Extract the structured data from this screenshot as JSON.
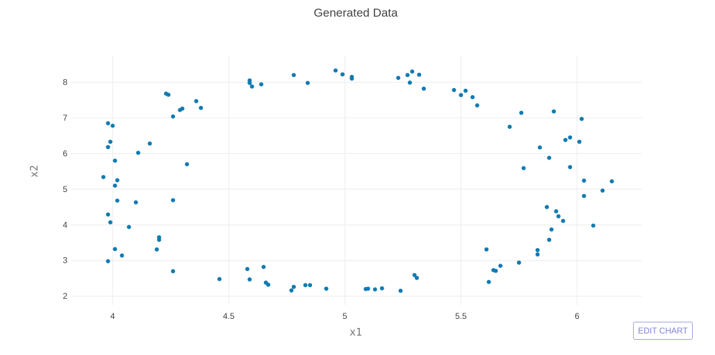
{
  "chart_data": {
    "type": "scatter",
    "title": "Generated Data",
    "xlabel": "x1",
    "ylabel": "x2",
    "xlim": [
      3.82,
      6.28
    ],
    "ylim": [
      1.75,
      8.75
    ],
    "x_ticks": [
      4,
      4.5,
      5,
      5.5,
      6
    ],
    "y_ticks": [
      2,
      3,
      4,
      5,
      6,
      7,
      8
    ],
    "x_tick_labels": [
      "4",
      "4.5",
      "5",
      "5.5",
      "6"
    ],
    "y_tick_labels": [
      "2",
      "3",
      "4",
      "5",
      "6",
      "7",
      "8"
    ],
    "grid": true,
    "marker_color": "#0f7bb2",
    "points": [
      {
        "x": 3.98,
        "y": 6.85
      },
      {
        "x": 4.0,
        "y": 6.78
      },
      {
        "x": 3.99,
        "y": 6.33
      },
      {
        "x": 3.98,
        "y": 6.18
      },
      {
        "x": 4.01,
        "y": 5.8
      },
      {
        "x": 3.96,
        "y": 5.34
      },
      {
        "x": 4.02,
        "y": 5.25
      },
      {
        "x": 4.01,
        "y": 5.1
      },
      {
        "x": 4.02,
        "y": 4.68
      },
      {
        "x": 3.98,
        "y": 4.29
      },
      {
        "x": 3.99,
        "y": 4.07
      },
      {
        "x": 4.01,
        "y": 3.32
      },
      {
        "x": 4.04,
        "y": 3.14
      },
      {
        "x": 3.98,
        "y": 2.98
      },
      {
        "x": 4.11,
        "y": 6.02
      },
      {
        "x": 4.16,
        "y": 6.28
      },
      {
        "x": 4.1,
        "y": 4.63
      },
      {
        "x": 4.07,
        "y": 3.94
      },
      {
        "x": 4.2,
        "y": 3.65
      },
      {
        "x": 4.2,
        "y": 3.58
      },
      {
        "x": 4.19,
        "y": 3.31
      },
      {
        "x": 4.23,
        "y": 7.68
      },
      {
        "x": 4.24,
        "y": 7.65
      },
      {
        "x": 4.26,
        "y": 7.04
      },
      {
        "x": 4.29,
        "y": 7.22
      },
      {
        "x": 4.3,
        "y": 7.26
      },
      {
        "x": 4.26,
        "y": 4.69
      },
      {
        "x": 4.26,
        "y": 2.7
      },
      {
        "x": 4.32,
        "y": 5.7
      },
      {
        "x": 4.36,
        "y": 7.47
      },
      {
        "x": 4.38,
        "y": 7.28
      },
      {
        "x": 4.46,
        "y": 2.48
      },
      {
        "x": 4.59,
        "y": 8.05
      },
      {
        "x": 4.59,
        "y": 7.98
      },
      {
        "x": 4.6,
        "y": 7.88
      },
      {
        "x": 4.64,
        "y": 7.94
      },
      {
        "x": 4.58,
        "y": 2.76
      },
      {
        "x": 4.59,
        "y": 2.47
      },
      {
        "x": 4.65,
        "y": 2.82
      },
      {
        "x": 4.66,
        "y": 2.38
      },
      {
        "x": 4.67,
        "y": 2.32
      },
      {
        "x": 4.78,
        "y": 8.2
      },
      {
        "x": 4.84,
        "y": 7.98
      },
      {
        "x": 4.77,
        "y": 2.16
      },
      {
        "x": 4.78,
        "y": 2.26
      },
      {
        "x": 4.83,
        "y": 2.31
      },
      {
        "x": 4.85,
        "y": 2.31
      },
      {
        "x": 4.92,
        "y": 2.21
      },
      {
        "x": 4.96,
        "y": 8.33
      },
      {
        "x": 4.99,
        "y": 8.22
      },
      {
        "x": 5.03,
        "y": 8.15
      },
      {
        "x": 5.03,
        "y": 8.1
      },
      {
        "x": 5.09,
        "y": 2.2
      },
      {
        "x": 5.1,
        "y": 2.21
      },
      {
        "x": 5.13,
        "y": 2.19
      },
      {
        "x": 5.16,
        "y": 2.22
      },
      {
        "x": 5.23,
        "y": 8.12
      },
      {
        "x": 5.27,
        "y": 8.2
      },
      {
        "x": 5.29,
        "y": 8.3
      },
      {
        "x": 5.28,
        "y": 7.99
      },
      {
        "x": 5.32,
        "y": 8.21
      },
      {
        "x": 5.34,
        "y": 7.82
      },
      {
        "x": 5.24,
        "y": 2.15
      },
      {
        "x": 5.3,
        "y": 2.59
      },
      {
        "x": 5.31,
        "y": 2.51
      },
      {
        "x": 5.47,
        "y": 7.78
      },
      {
        "x": 5.5,
        "y": 7.64
      },
      {
        "x": 5.52,
        "y": 7.76
      },
      {
        "x": 5.55,
        "y": 7.58
      },
      {
        "x": 5.57,
        "y": 7.35
      },
      {
        "x": 5.61,
        "y": 3.31
      },
      {
        "x": 5.62,
        "y": 2.4
      },
      {
        "x": 5.64,
        "y": 2.73
      },
      {
        "x": 5.65,
        "y": 2.71
      },
      {
        "x": 5.67,
        "y": 2.85
      },
      {
        "x": 5.71,
        "y": 6.75
      },
      {
        "x": 5.76,
        "y": 7.14
      },
      {
        "x": 5.77,
        "y": 5.59
      },
      {
        "x": 5.75,
        "y": 2.94
      },
      {
        "x": 5.83,
        "y": 3.29
      },
      {
        "x": 5.83,
        "y": 3.17
      },
      {
        "x": 5.84,
        "y": 6.17
      },
      {
        "x": 5.88,
        "y": 5.88
      },
      {
        "x": 5.88,
        "y": 3.58
      },
      {
        "x": 5.89,
        "y": 3.87
      },
      {
        "x": 5.87,
        "y": 4.5
      },
      {
        "x": 5.9,
        "y": 7.18
      },
      {
        "x": 5.91,
        "y": 4.38
      },
      {
        "x": 5.92,
        "y": 4.24
      },
      {
        "x": 5.94,
        "y": 4.11
      },
      {
        "x": 5.95,
        "y": 6.38
      },
      {
        "x": 5.97,
        "y": 6.45
      },
      {
        "x": 5.97,
        "y": 5.62
      },
      {
        "x": 6.01,
        "y": 6.33
      },
      {
        "x": 6.02,
        "y": 6.97
      },
      {
        "x": 6.03,
        "y": 5.24
      },
      {
        "x": 6.03,
        "y": 4.81
      },
      {
        "x": 6.07,
        "y": 3.98
      },
      {
        "x": 6.11,
        "y": 4.96
      },
      {
        "x": 6.15,
        "y": 5.22
      }
    ]
  },
  "ui": {
    "edit_button_label": "EDIT CHART"
  }
}
